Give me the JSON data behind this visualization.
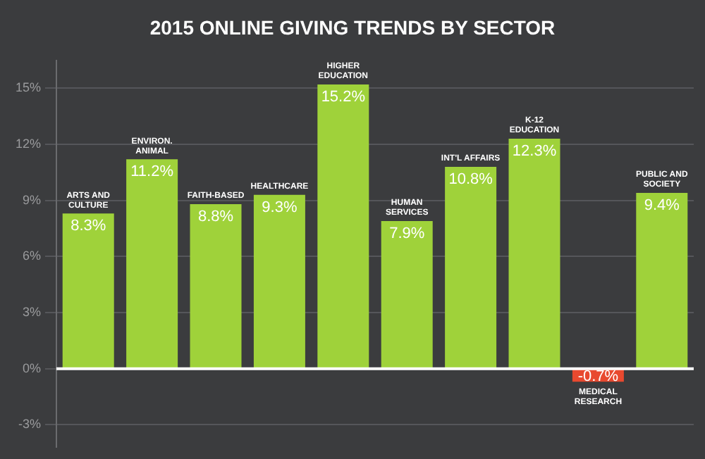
{
  "chart_data": {
    "type": "bar",
    "title": "2015 ONLINE GIVING TRENDS BY SECTOR",
    "categories": [
      "ARTS AND CULTURE",
      "ENVIRON. ANIMAL",
      "FAITH-BASED",
      "HEALTHCARE",
      "HIGHER EDUCATION",
      "HUMAN SERVICES",
      "INT'L AFFAIRS",
      "K-12 EDUCATION",
      "MEDICAL RESEARCH",
      "PUBLIC AND SOCIETY"
    ],
    "values": [
      8.3,
      11.2,
      8.8,
      9.3,
      15.2,
      7.9,
      10.8,
      12.3,
      -0.7,
      9.4
    ],
    "value_labels": [
      "8.3%",
      "11.2%",
      "8.8%",
      "9.3%",
      "15.2%",
      "7.9%",
      "10.8%",
      "12.3%",
      "-0.7%",
      "9.4%"
    ],
    "colors": [
      "#9fd23a",
      "#9fd23a",
      "#9fd23a",
      "#9fd23a",
      "#9fd23a",
      "#9fd23a",
      "#9fd23a",
      "#9fd23a",
      "#e8492f",
      "#9fd23a"
    ],
    "ylim": [
      -4.2,
      16.5
    ],
    "yticks": [
      {
        "value": -3,
        "label": "-3%"
      },
      {
        "value": 0,
        "label": "0%"
      },
      {
        "value": 3,
        "label": "3%"
      },
      {
        "value": 6,
        "label": "6%"
      },
      {
        "value": 9,
        "label": "9%"
      },
      {
        "value": 12,
        "label": "12%"
      },
      {
        "value": 15,
        "label": "15%"
      }
    ],
    "grid": "y",
    "legend": false
  }
}
